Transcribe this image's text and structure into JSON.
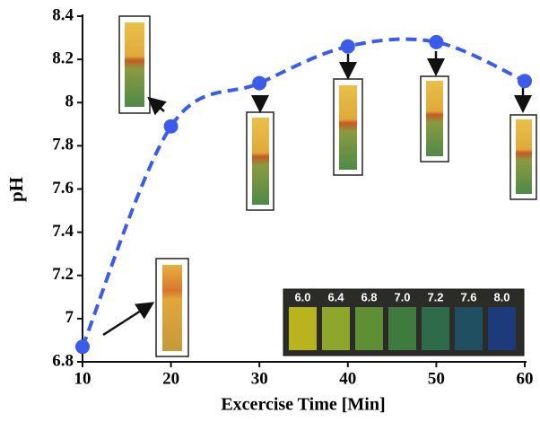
{
  "chart_data": {
    "type": "line",
    "x": [
      10,
      20,
      30,
      40,
      50,
      60
    ],
    "values": [
      6.87,
      7.89,
      8.09,
      8.26,
      8.28,
      8.1
    ],
    "color": "#3b5ce8",
    "xlabel": "Excercise Time [Min]",
    "ylabel": "pH",
    "xlim": [
      10,
      60
    ],
    "xticks": [
      10,
      20,
      30,
      40,
      50,
      60
    ],
    "ylim": [
      6.8,
      8.4
    ],
    "yticks": [
      6.8,
      7,
      7.2,
      7.4,
      7.6,
      7.8,
      8,
      8.2,
      8.4
    ],
    "inset": {
      "labels": [
        "6.0",
        "6.4",
        "6.8",
        "7.0",
        "7.2",
        "7.6",
        "8.0"
      ],
      "colors": [
        "#b9b320",
        "#8fa62c",
        "#5f8f35",
        "#3f7a3e",
        "#2f6a4a",
        "#214f62",
        "#1d3b7a"
      ]
    }
  }
}
